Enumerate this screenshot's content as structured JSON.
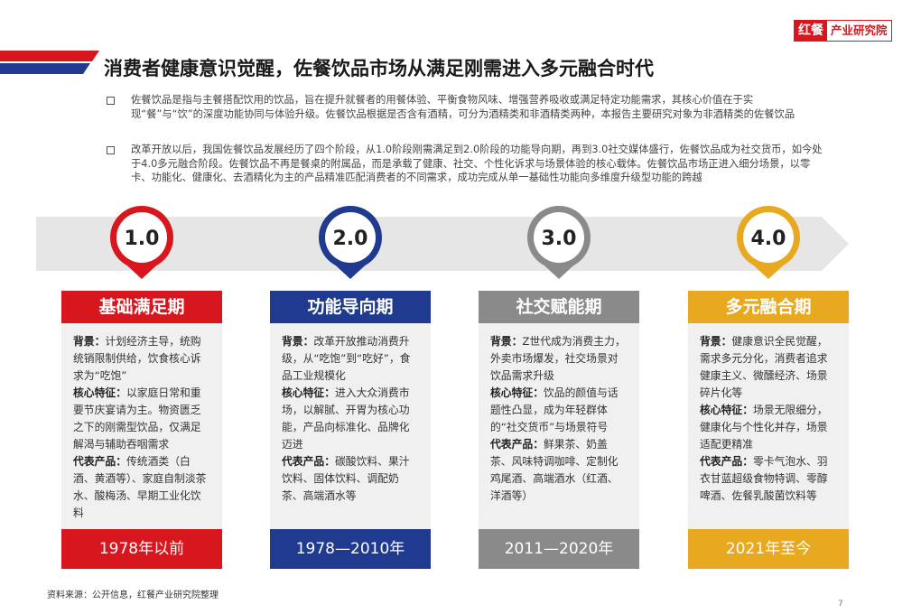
{
  "logo": {
    "brand": "红餐",
    "name": "产业研究院"
  },
  "title": "消费者健康意识觉醒，佐餐饮品市场从满足刚需进入多元融合时代",
  "bullets": [
    "佐餐饮品是指与主餐搭配饮用的饮品，旨在提升就餐者的用餐体验、平衡食物风味、增强营养吸收或满足特定功能需求，其核心价值在于实现“餐”与“饮”的深度功能协同与体验升级。佐餐饮品根据是否含有酒精，可分为酒精类和非酒精类两种，本报告主要研究对象为非酒精类的佐餐饮品",
    "改革开放以后，我国佐餐饮品发展经历了四个阶段，从1.0阶段刚需满足到2.0阶段的功能导向期，再到3.0社交媒体盛行，佐餐饮品成为社交货币，如今处于4.0多元融合阶段。佐餐饮品不再是餐桌的附属品，而是承载了健康、社交、个性化诉求与场景体验的核心载体。佐餐饮品市场正进入细分场景，以零卡、功能化、健康化、去酒精化为主的产品精准匹配消费者的不同需求，成功完成从单一基础性功能向多维度升级型功能的跨越"
  ],
  "stages": [
    {
      "badge": "1.0",
      "name": "基础满足期",
      "sections": [
        {
          "label": "背景：",
          "text": "计划经济主导，统购统销限制供给，饮食核心诉求为“吃饱”"
        },
        {
          "label": "核心特征：",
          "text": "以家庭日常和重要节庆宴请为主。物资匮乏之下的刚需型饮品，仅满足解渴与辅助吞咽需求"
        },
        {
          "label": "代表产品：",
          "text": "传统酒类（白酒、黄酒等）、家庭自制淡茶水、酸梅汤、早期工业化饮料"
        }
      ],
      "period": "1978年以前"
    },
    {
      "badge": "2.0",
      "name": "功能导向期",
      "sections": [
        {
          "label": "背景：",
          "text": "改革开放推动消费升级，从“吃饱”到“吃好”，食品工业规模化"
        },
        {
          "label": "核心特征：",
          "text": "进入大众消费市场，以解腻、开胃为核心功能，产品向标准化、品牌化迈进"
        },
        {
          "label": "代表产品：",
          "text": "碳酸饮料、果汁饮料、固体饮料、调配奶茶、高端酒水等"
        }
      ],
      "period": "1978—2010年"
    },
    {
      "badge": "3.0",
      "name": "社交赋能期",
      "sections": [
        {
          "label": "背景：",
          "text": "Z世代成为消费主力，外卖市场爆发，社交场景对饮品需求升级"
        },
        {
          "label": "核心特征：",
          "text": "饮品的颜值与话题性凸显，成为年轻群体的“社交货币”与场景符号"
        },
        {
          "label": "代表产品：",
          "text": "鲜果茶、奶盖茶、风味特调咖啡、定制化鸡尾酒、高端酒水（红酒、洋酒等）"
        }
      ],
      "period": "2011—2020年"
    },
    {
      "badge": "4.0",
      "name": "多元融合期",
      "sections": [
        {
          "label": "背景：",
          "text": "健康意识全民觉醒，需求多元分化，消费者追求健康主义、微醺经济、场景碎片化等"
        },
        {
          "label": "核心特征：",
          "text": "场景无限细分，健康化与个性化并存，场景适配更精准"
        },
        {
          "label": "代表产品：",
          "text": "零卡气泡水、羽衣甘蓝超级食物特调、零醇啤酒、佐餐乳酸菌饮料等"
        }
      ],
      "period": "2021年至今"
    }
  ],
  "source": "资料来源：公开信息，红餐产业研究院整理",
  "page_number": "7"
}
